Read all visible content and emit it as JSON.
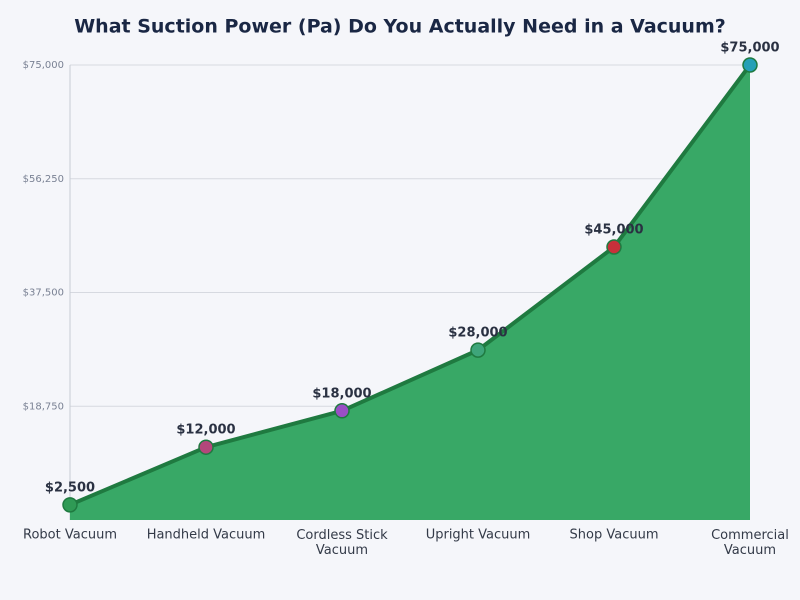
{
  "chart_data": {
    "type": "area",
    "title": "What Suction Power (Pa) Do You Actually Need in a Vacuum?",
    "categories": [
      "Robot Vacuum",
      "Handheld Vacuum",
      "Cordless Stick Vacuum",
      "Upright Vacuum",
      "Shop Vacuum",
      "Commercial Vacuum"
    ],
    "values": [
      2500,
      12000,
      18000,
      28000,
      45000,
      75000
    ],
    "value_labels": [
      "$2,500",
      "$12,000",
      "$18,000",
      "$28,000",
      "$45,000",
      "$75,000"
    ],
    "point_colors": [
      "#2f9a55",
      "#b4477b",
      "#9a4fc6",
      "#3ea57a",
      "#c8303a",
      "#25a0b6"
    ],
    "line_color": "#1f7a40",
    "fill_color": "#38a866",
    "ylim": [
      0,
      75000
    ],
    "yticks": [
      {
        "value": 18750,
        "label": "$18,750"
      },
      {
        "value": 37500,
        "label": "$37,500"
      },
      {
        "value": 56250,
        "label": "$56,250"
      },
      {
        "value": 75000,
        "label": "$75,000"
      }
    ],
    "grid": true
  }
}
